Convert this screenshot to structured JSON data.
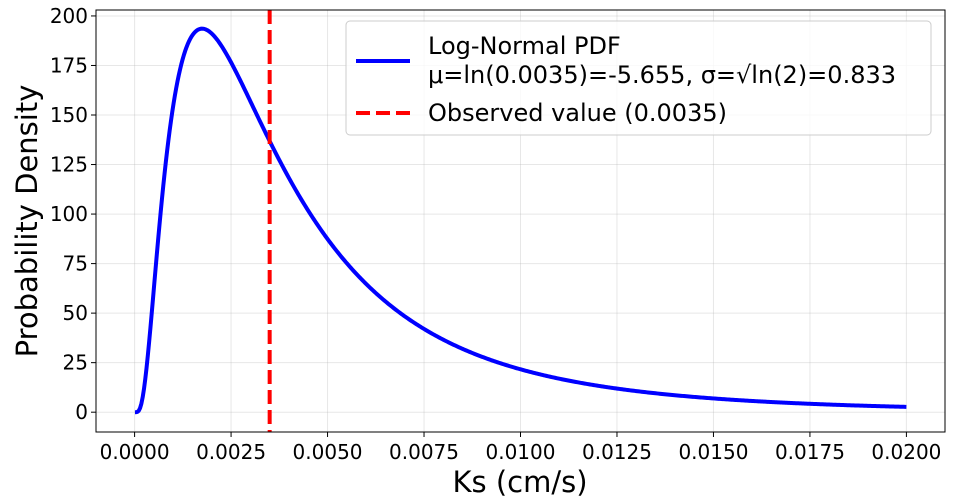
{
  "chart_data": {
    "type": "line",
    "title": "",
    "xlabel": "Ks (cm/s)",
    "ylabel": "Probability Density",
    "xlim": [
      -0.001,
      0.021
    ],
    "ylim": [
      -10,
      203
    ],
    "grid": true,
    "x_ticks": [
      0.0,
      0.0025,
      0.005,
      0.0075,
      0.01,
      0.0125,
      0.015,
      0.0175,
      0.02
    ],
    "x_tick_labels": [
      "0.0000",
      "0.0025",
      "0.0050",
      "0.0075",
      "0.0100",
      "0.0125",
      "0.0150",
      "0.0175",
      "0.0200"
    ],
    "y_ticks": [
      0,
      25,
      50,
      75,
      100,
      125,
      150,
      175,
      200
    ],
    "y_tick_labels": [
      "0",
      "25",
      "50",
      "75",
      "100",
      "125",
      "150",
      "175",
      "200"
    ],
    "legend_position": "top-right",
    "series": [
      {
        "name": "Log-Normal PDF",
        "legend_line1": "Log-Normal PDF",
        "legend_line2": "μ=ln(0.0035)=-5.655, σ=√ln(2)=0.833",
        "color": "#0000ff",
        "style": "solid",
        "distribution": "lognormal",
        "mu": -5.655,
        "sigma": 0.833,
        "x_start": 1e-05,
        "x_end": 0.02
      },
      {
        "name": "Observed value (0.0035)",
        "color": "#ff0000",
        "style": "dashed",
        "kind": "vline",
        "x": 0.0035
      }
    ]
  }
}
